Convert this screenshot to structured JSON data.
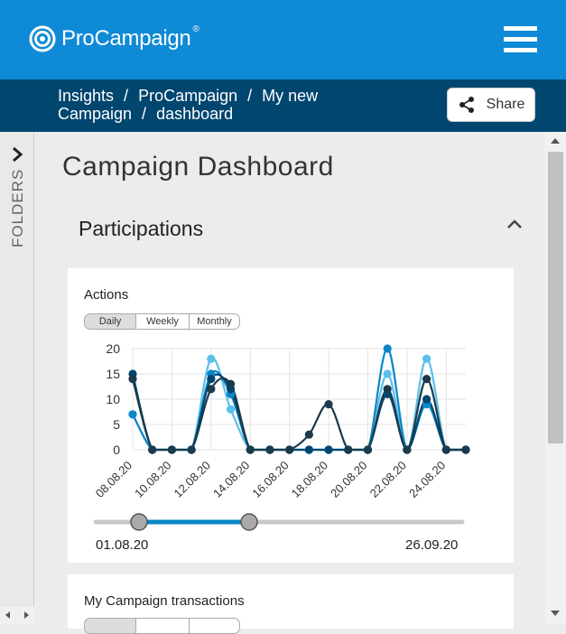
{
  "header": {
    "brand": "ProCampaign",
    "brand_mark": "®",
    "menu_icon": "hamburger-icon",
    "color": "#0f8ad6"
  },
  "breadcrumb": {
    "items": [
      "Insights",
      "ProCampaign",
      "My new Campaign",
      "dashboard"
    ],
    "separator": "/",
    "color": "#00466f"
  },
  "share": {
    "label": "Share",
    "icon": "share-icon"
  },
  "sidebar": {
    "label": "FOLDERS",
    "icon": "chevron-right-icon"
  },
  "page": {
    "title": "Campaign Dashboard"
  },
  "section": {
    "title": "Participations",
    "toggle_icon": "chevron-up-icon"
  },
  "card1": {
    "title": "Actions",
    "tabs": [
      "Daily",
      "Weekly",
      "Monthly"
    ],
    "active_tab": "Daily",
    "range": {
      "start": "01.08.20",
      "end": "26.09.20"
    }
  },
  "card2": {
    "title": "My Campaign transactions"
  },
  "chart_data": {
    "type": "line",
    "title": "Actions",
    "x": [
      "08.08.20",
      "09.08.20",
      "10.08.20",
      "11.08.20",
      "12.08.20",
      "13.08.20",
      "14.08.20",
      "15.08.20",
      "16.08.20",
      "17.08.20",
      "18.08.20",
      "19.08.20",
      "20.08.20",
      "21.08.20",
      "22.08.20",
      "23.08.20",
      "24.08.20",
      "25.08.20"
    ],
    "x_tick_labels": [
      "08.08.20",
      "10.08.20",
      "12.08.20",
      "14.08.20",
      "16.08.20",
      "18.08.20",
      "20.08.20",
      "22.08.20",
      "24.08.20"
    ],
    "y_ticks": [
      0,
      5,
      10,
      15,
      20
    ],
    "ylim": [
      0,
      20
    ],
    "grid": true,
    "series": [
      {
        "color": "#5bc0eb",
        "values": [
          7,
          0,
          0,
          0,
          18,
          8,
          0,
          0,
          0,
          0,
          0,
          0,
          0,
          15,
          0,
          18,
          0,
          0
        ]
      },
      {
        "color": "#0a86c8",
        "values": [
          7,
          0,
          0,
          0,
          15,
          11,
          0,
          0,
          0,
          0,
          0,
          0,
          0,
          20,
          0,
          9,
          0,
          0
        ]
      },
      {
        "color": "#00466f",
        "values": [
          15,
          0,
          0,
          0,
          14,
          12,
          0,
          0,
          0,
          0,
          0,
          0,
          0,
          11,
          0,
          10,
          0,
          0
        ]
      },
      {
        "color": "#1b3a4b",
        "values": [
          14,
          0,
          0,
          0,
          12,
          13,
          0,
          0,
          0,
          3,
          9,
          0,
          0,
          12,
          0,
          14,
          0,
          0
        ]
      }
    ]
  }
}
